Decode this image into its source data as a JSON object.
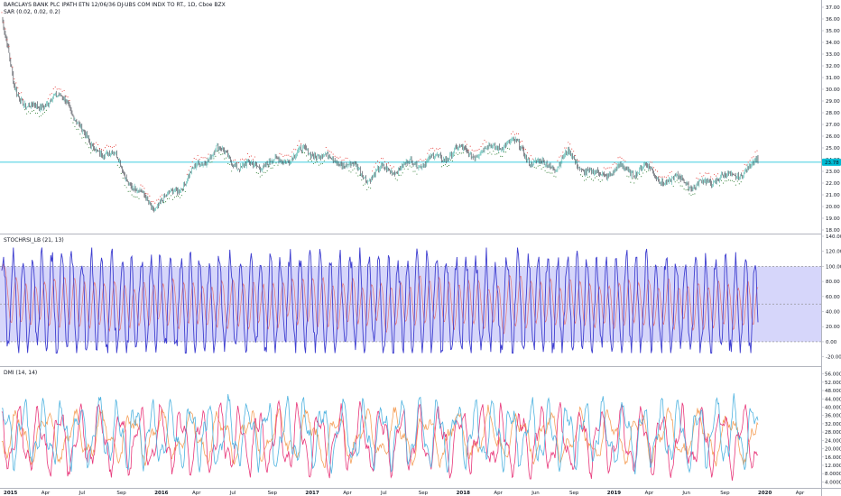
{
  "header": {
    "title": "BARCLAYS BANK PLC IPATH ETN 12/06/36 DJ-UBS COM INDX TO RT., 1D, Cboe BZX",
    "sar": "SAR (0.02, 0.02, 0.2)",
    "stoch": "STOCHRSI_LB (21, 13)",
    "dmi": "DMI (14, 14)"
  },
  "colors": {
    "price_up": "#26a69a",
    "price_down": "#ef5350",
    "candle_body": "#131722",
    "sar_up": "#2e7d32",
    "sar_down": "#e53935",
    "price_line": "#00bcd4",
    "stoch_k": "#3f3fd0",
    "stoch_d": "#e57373",
    "stoch_band": "#d6d6fa",
    "dmi_plus": "#4fb3e0",
    "dmi_minus": "#e8377a",
    "dmi_adx": "#f5a05a"
  },
  "price_axis": {
    "ticks": [
      "37.00",
      "36.00",
      "35.00",
      "34.00",
      "33.00",
      "32.00",
      "31.00",
      "30.00",
      "29.00",
      "28.00",
      "27.00",
      "26.00",
      "25.00",
      "24.00",
      "23.00",
      "22.00",
      "21.00",
      "20.00",
      "19.00",
      "18.00"
    ],
    "current_label": "23.78"
  },
  "stoch_axis": {
    "ticks": [
      "140.00",
      "120.00",
      "100.00",
      "80.00",
      "60.00",
      "40.00",
      "20.00",
      "0.00",
      "-20.00"
    ]
  },
  "dmi_axis": {
    "ticks": [
      "56.0000",
      "52.0000",
      "48.0000",
      "44.0000",
      "40.0000",
      "36.0000",
      "32.0000",
      "28.0000",
      "24.0000",
      "20.0000",
      "16.0000",
      "12.0000",
      "8.0000",
      "4.0000"
    ]
  },
  "time_axis": {
    "labels": [
      "2015",
      "Apr",
      "Jul",
      "Sep",
      "2016",
      "Apr",
      "Jul",
      "Sep",
      "2017",
      "Apr",
      "Jul",
      "Sep",
      "2018",
      "Apr",
      "Jun",
      "Sep",
      "2019",
      "Apr",
      "Jun",
      "Sep",
      "2020",
      "Apr"
    ]
  },
  "chart_data": [
    {
      "type": "line",
      "title": "BARCLAYS BANK PLC IPATH ETN 12/06/36 DJ-UBS COM INDX TO RT., 1D, Cboe BZX",
      "series": [
        {
          "name": "SAR (0.02, 0.02, 0.2)"
        }
      ],
      "x_start": "2015",
      "x_end": "2020",
      "ylim": [
        18,
        37
      ],
      "anchors": [
        {
          "x": "2015-01",
          "y": 36.0
        },
        {
          "x": "2015-02",
          "y": 30.2
        },
        {
          "x": "2015-03",
          "y": 28.6
        },
        {
          "x": "2015-04",
          "y": 28.2
        },
        {
          "x": "2015-05",
          "y": 29.6
        },
        {
          "x": "2015-06",
          "y": 28.9
        },
        {
          "x": "2015-07",
          "y": 27.5
        },
        {
          "x": "2015-08",
          "y": 25.0
        },
        {
          "x": "2015-09",
          "y": 24.8
        },
        {
          "x": "2015-10",
          "y": 24.3
        },
        {
          "x": "2015-11",
          "y": 22.3
        },
        {
          "x": "2015-12",
          "y": 21.0
        },
        {
          "x": "2016-01",
          "y": 20.0
        },
        {
          "x": "2016-02",
          "y": 20.6
        },
        {
          "x": "2016-03",
          "y": 21.6
        },
        {
          "x": "2016-04",
          "y": 22.8
        },
        {
          "x": "2016-05",
          "y": 23.8
        },
        {
          "x": "2016-06",
          "y": 25.0
        },
        {
          "x": "2016-07",
          "y": 24.2
        },
        {
          "x": "2016-08",
          "y": 23.3
        },
        {
          "x": "2016-09",
          "y": 23.5
        },
        {
          "x": "2016-10",
          "y": 23.7
        },
        {
          "x": "2016-11",
          "y": 23.8
        },
        {
          "x": "2016-12",
          "y": 24.3
        },
        {
          "x": "2017-01",
          "y": 24.7
        },
        {
          "x": "2017-02",
          "y": 24.6
        },
        {
          "x": "2017-03",
          "y": 24.0
        },
        {
          "x": "2017-04",
          "y": 23.8
        },
        {
          "x": "2017-05",
          "y": 23.3
        },
        {
          "x": "2017-06",
          "y": 22.5
        },
        {
          "x": "2017-07",
          "y": 23.0
        },
        {
          "x": "2017-08",
          "y": 23.2
        },
        {
          "x": "2017-09",
          "y": 23.5
        },
        {
          "x": "2017-10",
          "y": 23.7
        },
        {
          "x": "2017-11",
          "y": 24.0
        },
        {
          "x": "2017-12",
          "y": 24.1
        },
        {
          "x": "2018-01",
          "y": 24.9
        },
        {
          "x": "2018-02",
          "y": 24.5
        },
        {
          "x": "2018-03",
          "y": 24.7
        },
        {
          "x": "2018-04",
          "y": 25.0
        },
        {
          "x": "2018-05",
          "y": 25.5
        },
        {
          "x": "2018-06",
          "y": 25.2
        },
        {
          "x": "2018-07",
          "y": 23.9
        },
        {
          "x": "2018-08",
          "y": 23.5
        },
        {
          "x": "2018-09",
          "y": 23.6
        },
        {
          "x": "2018-10",
          "y": 24.4
        },
        {
          "x": "2018-11",
          "y": 23.4
        },
        {
          "x": "2018-12",
          "y": 22.6
        },
        {
          "x": "2019-01",
          "y": 22.9
        },
        {
          "x": "2019-02",
          "y": 23.2
        },
        {
          "x": "2019-03",
          "y": 23.0
        },
        {
          "x": "2019-04",
          "y": 23.4
        },
        {
          "x": "2019-05",
          "y": 22.6
        },
        {
          "x": "2019-06",
          "y": 22.0
        },
        {
          "x": "2019-07",
          "y": 22.5
        },
        {
          "x": "2019-08",
          "y": 21.6
        },
        {
          "x": "2019-09",
          "y": 22.1
        },
        {
          "x": "2019-10",
          "y": 22.6
        },
        {
          "x": "2019-11",
          "y": 22.4
        },
        {
          "x": "2019-12",
          "y": 23.2
        },
        {
          "x": "2020-01",
          "y": 23.78
        }
      ],
      "hline": 23.78
    },
    {
      "type": "line",
      "title": "STOCHRSI_LB (21, 13)",
      "ylim": [
        -30,
        140
      ],
      "bands": {
        "upper": 100,
        "middle": 50,
        "lower": 0
      },
      "series": [
        {
          "name": "",
          "oscillating": true,
          "min": -15,
          "max": 125,
          "cycles": 64
        },
        {
          "name": "",
          "smoothing": 13
        }
      ]
    },
    {
      "type": "line",
      "title": "DMI (14, 14)",
      "ylim": [
        2,
        58
      ],
      "series": [
        {
          "name": "",
          "mean": 27,
          "amp": 12,
          "cycles": 40
        },
        {
          "name": "",
          "mean": 24,
          "amp": 12,
          "cycles": 38
        },
        {
          "name": "",
          "mean": 26,
          "amp": 9,
          "cycles": 26
        }
      ]
    }
  ]
}
